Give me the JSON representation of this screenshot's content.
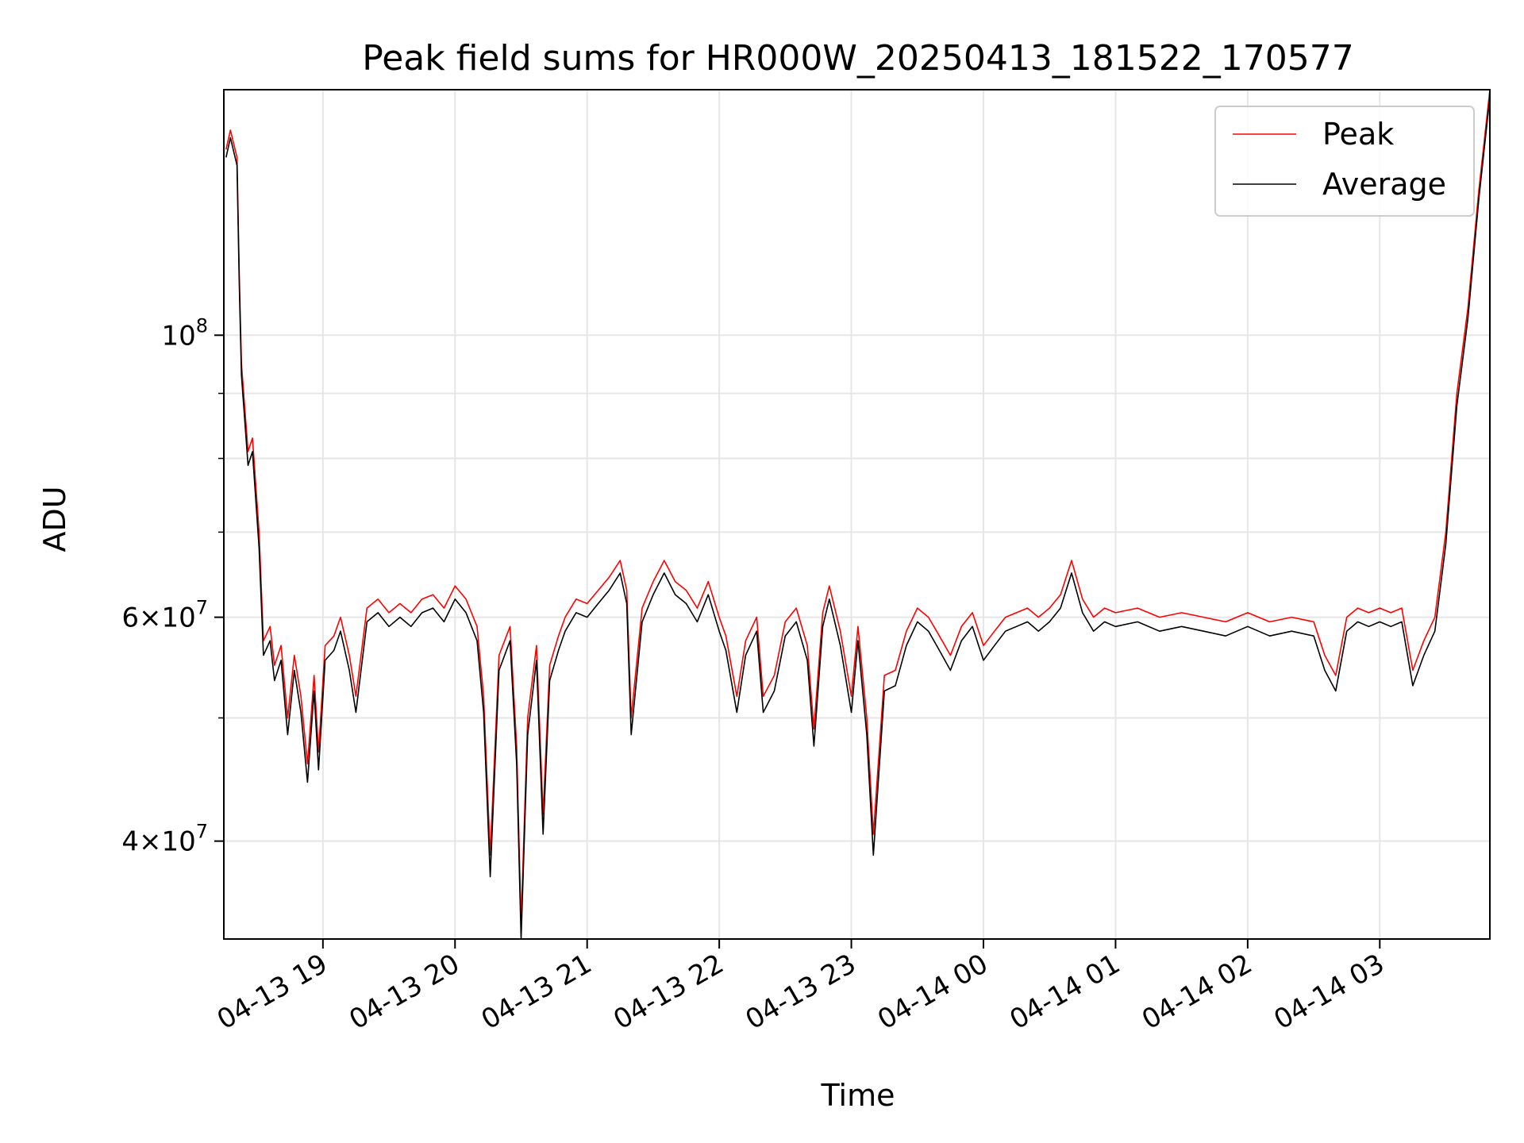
{
  "chart_data": {
    "type": "line",
    "title": "Peak field sums for HR000W_20250413_181522_170577",
    "xlabel": "Time",
    "ylabel": "ADU",
    "yscale": "log",
    "ylim": [
      33500000,
      156000000
    ],
    "xlim": [
      "2025-04-13 18:15",
      "2025-04-14 03:50"
    ],
    "x_ticks": [
      {
        "t": "2025-04-13 19:00",
        "label": "04-13 19"
      },
      {
        "t": "2025-04-13 20:00",
        "label": "04-13 20"
      },
      {
        "t": "2025-04-13 21:00",
        "label": "04-13 21"
      },
      {
        "t": "2025-04-13 22:00",
        "label": "04-13 22"
      },
      {
        "t": "2025-04-13 23:00",
        "label": "04-13 23"
      },
      {
        "t": "2025-04-14 00:00",
        "label": "04-14 00"
      },
      {
        "t": "2025-04-14 01:00",
        "label": "04-14 01"
      },
      {
        "t": "2025-04-14 02:00",
        "label": "04-14 02"
      },
      {
        "t": "2025-04-14 03:00",
        "label": "04-14 03"
      }
    ],
    "y_major_ticks": [
      {
        "value": 100000000,
        "base": "10",
        "exp": "8"
      },
      {
        "value": 60000000,
        "mant": "6",
        "base": "10",
        "exp": "7"
      },
      {
        "value": 40000000,
        "mant": "4",
        "base": "10",
        "exp": "7"
      }
    ],
    "y_minor_ticks": [
      50000000,
      70000000,
      80000000,
      90000000
    ],
    "grid": true,
    "legend_position": "upper-right",
    "series": [
      {
        "name": "Peak",
        "color": "#ff0000",
        "x": [
          "2025-04-13 18:16",
          "2025-04-13 18:18",
          "2025-04-13 18:21",
          "2025-04-13 18:22",
          "2025-04-13 18:23",
          "2025-04-13 18:26",
          "2025-04-13 18:28",
          "2025-04-13 18:31",
          "2025-04-13 18:33",
          "2025-04-13 18:36",
          "2025-04-13 18:38",
          "2025-04-13 18:41",
          "2025-04-13 18:44",
          "2025-04-13 18:47",
          "2025-04-13 18:50",
          "2025-04-13 18:53",
          "2025-04-13 18:56",
          "2025-04-13 18:58",
          "2025-04-13 19:01",
          "2025-04-13 19:05",
          "2025-04-13 19:08",
          "2025-04-13 19:12",
          "2025-04-13 19:15",
          "2025-04-13 19:20",
          "2025-04-13 19:25",
          "2025-04-13 19:30",
          "2025-04-13 19:35",
          "2025-04-13 19:40",
          "2025-04-13 19:45",
          "2025-04-13 19:50",
          "2025-04-13 19:55",
          "2025-04-13 20:00",
          "2025-04-13 20:05",
          "2025-04-13 20:10",
          "2025-04-13 20:13",
          "2025-04-13 20:16",
          "2025-04-13 20:20",
          "2025-04-13 20:25",
          "2025-04-13 20:28",
          "2025-04-13 20:30",
          "2025-04-13 20:33",
          "2025-04-13 20:37",
          "2025-04-13 20:40",
          "2025-04-13 20:43",
          "2025-04-13 20:47",
          "2025-04-13 20:50",
          "2025-04-13 20:55",
          "2025-04-13 21:00",
          "2025-04-13 21:05",
          "2025-04-13 21:10",
          "2025-04-13 21:15",
          "2025-04-13 21:18",
          "2025-04-13 21:20",
          "2025-04-13 21:25",
          "2025-04-13 21:30",
          "2025-04-13 21:35",
          "2025-04-13 21:40",
          "2025-04-13 21:45",
          "2025-04-13 21:50",
          "2025-04-13 21:55",
          "2025-04-13 22:00",
          "2025-04-13 22:03",
          "2025-04-13 22:08",
          "2025-04-13 22:12",
          "2025-04-13 22:17",
          "2025-04-13 22:20",
          "2025-04-13 22:25",
          "2025-04-13 22:30",
          "2025-04-13 22:35",
          "2025-04-13 22:40",
          "2025-04-13 22:43",
          "2025-04-13 22:47",
          "2025-04-13 22:50",
          "2025-04-13 22:55",
          "2025-04-13 23:00",
          "2025-04-13 23:03",
          "2025-04-13 23:07",
          "2025-04-13 23:10",
          "2025-04-13 23:15",
          "2025-04-13 23:20",
          "2025-04-13 23:25",
          "2025-04-13 23:30",
          "2025-04-13 23:35",
          "2025-04-13 23:40",
          "2025-04-13 23:45",
          "2025-04-13 23:50",
          "2025-04-13 23:55",
          "2025-04-14 00:00",
          "2025-04-14 00:05",
          "2025-04-14 00:10",
          "2025-04-14 00:15",
          "2025-04-14 00:20",
          "2025-04-14 00:25",
          "2025-04-14 00:30",
          "2025-04-14 00:35",
          "2025-04-14 00:40",
          "2025-04-14 00:45",
          "2025-04-14 00:50",
          "2025-04-14 00:55",
          "2025-04-14 01:00",
          "2025-04-14 01:10",
          "2025-04-14 01:20",
          "2025-04-14 01:30",
          "2025-04-14 01:40",
          "2025-04-14 01:50",
          "2025-04-14 02:00",
          "2025-04-14 02:10",
          "2025-04-14 02:20",
          "2025-04-14 02:30",
          "2025-04-14 02:35",
          "2025-04-14 02:40",
          "2025-04-14 02:45",
          "2025-04-14 02:50",
          "2025-04-14 02:55",
          "2025-04-14 03:00",
          "2025-04-14 03:05",
          "2025-04-14 03:10",
          "2025-04-14 03:15",
          "2025-04-14 03:20",
          "2025-04-14 03:25",
          "2025-04-14 03:30",
          "2025-04-14 03:35",
          "2025-04-14 03:40",
          "2025-04-14 03:45",
          "2025-04-14 03:50"
        ],
        "y": [
          140000000,
          145000000,
          138000000,
          112000000,
          95000000,
          81000000,
          83000000,
          70000000,
          57500000,
          59000000,
          55000000,
          57000000,
          50000000,
          56000000,
          52000000,
          46000000,
          54000000,
          47000000,
          57000000,
          58000000,
          60000000,
          56000000,
          52000000,
          61000000,
          62000000,
          60500000,
          61500000,
          60500000,
          62000000,
          62500000,
          61000000,
          63500000,
          62000000,
          59000000,
          52000000,
          39000000,
          56000000,
          59000000,
          47500000,
          34500000,
          50000000,
          57000000,
          42000000,
          55000000,
          58000000,
          60000000,
          62000000,
          61500000,
          63000000,
          64500000,
          66500000,
          63000000,
          50000000,
          61000000,
          64000000,
          66500000,
          64000000,
          63000000,
          61000000,
          64000000,
          60000000,
          58000000,
          52000000,
          57500000,
          60000000,
          52000000,
          54000000,
          59500000,
          61000000,
          57000000,
          49000000,
          60500000,
          63500000,
          58500000,
          52000000,
          59000000,
          50000000,
          40500000,
          54000000,
          54500000,
          58500000,
          61000000,
          60000000,
          58000000,
          56000000,
          59000000,
          60500000,
          57000000,
          58500000,
          60000000,
          60500000,
          61000000,
          60000000,
          61000000,
          62500000,
          66500000,
          62000000,
          60000000,
          61000000,
          60500000,
          61000000,
          60000000,
          60500000,
          60000000,
          59500000,
          60500000,
          59500000,
          60000000,
          59500000,
          56000000,
          54000000,
          60000000,
          61000000,
          60500000,
          61000000,
          60500000,
          61000000,
          54500000,
          57500000,
          60000000,
          70000000,
          90000000,
          105000000,
          130000000,
          156000000
        ]
      },
      {
        "name": "Average",
        "color": "#000000",
        "x": [
          "2025-04-13 18:16",
          "2025-04-13 18:18",
          "2025-04-13 18:21",
          "2025-04-13 18:22",
          "2025-04-13 18:23",
          "2025-04-13 18:26",
          "2025-04-13 18:28",
          "2025-04-13 18:31",
          "2025-04-13 18:33",
          "2025-04-13 18:36",
          "2025-04-13 18:38",
          "2025-04-13 18:41",
          "2025-04-13 18:44",
          "2025-04-13 18:47",
          "2025-04-13 18:50",
          "2025-04-13 18:53",
          "2025-04-13 18:56",
          "2025-04-13 18:58",
          "2025-04-13 19:01",
          "2025-04-13 19:05",
          "2025-04-13 19:08",
          "2025-04-13 19:12",
          "2025-04-13 19:15",
          "2025-04-13 19:20",
          "2025-04-13 19:25",
          "2025-04-13 19:30",
          "2025-04-13 19:35",
          "2025-04-13 19:40",
          "2025-04-13 19:45",
          "2025-04-13 19:50",
          "2025-04-13 19:55",
          "2025-04-13 20:00",
          "2025-04-13 20:05",
          "2025-04-13 20:10",
          "2025-04-13 20:13",
          "2025-04-13 20:16",
          "2025-04-13 20:20",
          "2025-04-13 20:25",
          "2025-04-13 20:28",
          "2025-04-13 20:30",
          "2025-04-13 20:33",
          "2025-04-13 20:37",
          "2025-04-13 20:40",
          "2025-04-13 20:43",
          "2025-04-13 20:47",
          "2025-04-13 20:50",
          "2025-04-13 20:55",
          "2025-04-13 21:00",
          "2025-04-13 21:05",
          "2025-04-13 21:10",
          "2025-04-13 21:15",
          "2025-04-13 21:18",
          "2025-04-13 21:20",
          "2025-04-13 21:25",
          "2025-04-13 21:30",
          "2025-04-13 21:35",
          "2025-04-13 21:40",
          "2025-04-13 21:45",
          "2025-04-13 21:50",
          "2025-04-13 21:55",
          "2025-04-13 22:00",
          "2025-04-13 22:03",
          "2025-04-13 22:08",
          "2025-04-13 22:12",
          "2025-04-13 22:17",
          "2025-04-13 22:20",
          "2025-04-13 22:25",
          "2025-04-13 22:30",
          "2025-04-13 22:35",
          "2025-04-13 22:40",
          "2025-04-13 22:43",
          "2025-04-13 22:47",
          "2025-04-13 22:50",
          "2025-04-13 22:55",
          "2025-04-13 23:00",
          "2025-04-13 23:03",
          "2025-04-13 23:07",
          "2025-04-13 23:10",
          "2025-04-13 23:15",
          "2025-04-13 23:20",
          "2025-04-13 23:25",
          "2025-04-13 23:30",
          "2025-04-13 23:35",
          "2025-04-13 23:40",
          "2025-04-13 23:45",
          "2025-04-13 23:50",
          "2025-04-13 23:55",
          "2025-04-14 00:00",
          "2025-04-14 00:05",
          "2025-04-14 00:10",
          "2025-04-14 00:15",
          "2025-04-14 00:20",
          "2025-04-14 00:25",
          "2025-04-14 00:30",
          "2025-04-14 00:35",
          "2025-04-14 00:40",
          "2025-04-14 00:45",
          "2025-04-14 00:50",
          "2025-04-14 00:55",
          "2025-04-14 01:00",
          "2025-04-14 01:10",
          "2025-04-14 01:20",
          "2025-04-14 01:30",
          "2025-04-14 01:40",
          "2025-04-14 01:50",
          "2025-04-14 02:00",
          "2025-04-14 02:10",
          "2025-04-14 02:20",
          "2025-04-14 02:30",
          "2025-04-14 02:35",
          "2025-04-14 02:40",
          "2025-04-14 02:45",
          "2025-04-14 02:50",
          "2025-04-14 02:55",
          "2025-04-14 03:00",
          "2025-04-14 03:05",
          "2025-04-14 03:10",
          "2025-04-14 03:15",
          "2025-04-14 03:20",
          "2025-04-14 03:25",
          "2025-04-14 03:30",
          "2025-04-14 03:35",
          "2025-04-14 03:40",
          "2025-04-14 03:45",
          "2025-04-14 03:50"
        ],
        "y": [
          138000000,
          143000000,
          136000000,
          110000000,
          93000000,
          79000000,
          81000000,
          68000000,
          56000000,
          57500000,
          53500000,
          55500000,
          48500000,
          54500000,
          50500000,
          44500000,
          52500000,
          45500000,
          55500000,
          56500000,
          58500000,
          54500000,
          50500000,
          59500000,
          60500000,
          59000000,
          60000000,
          59000000,
          60500000,
          61000000,
          59500000,
          62000000,
          60500000,
          57500000,
          50500000,
          37500000,
          54500000,
          57500000,
          46000000,
          33500000,
          48500000,
          55500000,
          40500000,
          53500000,
          56500000,
          58500000,
          60500000,
          60000000,
          61500000,
          63000000,
          65000000,
          61500000,
          48500000,
          59500000,
          62500000,
          65000000,
          62500000,
          61500000,
          59500000,
          62500000,
          58500000,
          56500000,
          50500000,
          56000000,
          58500000,
          50500000,
          52500000,
          58000000,
          59500000,
          55500000,
          47500000,
          59000000,
          62000000,
          57000000,
          50500000,
          57500000,
          48500000,
          39000000,
          52500000,
          53000000,
          57000000,
          59500000,
          58500000,
          56500000,
          54500000,
          57500000,
          59000000,
          55500000,
          57000000,
          58500000,
          59000000,
          59500000,
          58500000,
          59500000,
          61000000,
          65000000,
          60500000,
          58500000,
          59500000,
          59000000,
          59500000,
          58500000,
          59000000,
          58500000,
          58000000,
          59000000,
          58000000,
          58500000,
          58000000,
          54500000,
          52500000,
          58500000,
          59500000,
          59000000,
          59500000,
          59000000,
          59500000,
          53000000,
          56000000,
          58500000,
          68500000,
          88000000,
          103000000,
          128000000,
          154000000
        ]
      }
    ]
  }
}
